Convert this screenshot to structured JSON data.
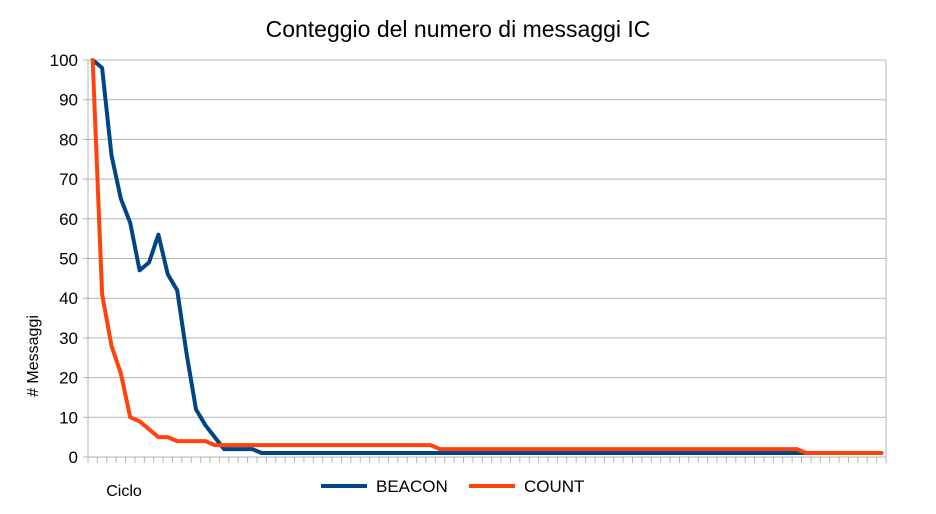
{
  "chart_data": {
    "type": "line",
    "title": "Conteggio del numero di messaggi IC",
    "xlabel": "Ciclo",
    "ylabel": "# Messaggi",
    "ylim": [
      0,
      100
    ],
    "yticks": [
      0,
      10,
      20,
      30,
      40,
      50,
      60,
      70,
      80,
      90,
      100
    ],
    "grid": true,
    "legend_position": "bottom",
    "x": [
      1,
      2,
      3,
      4,
      5,
      6,
      7,
      8,
      9,
      10,
      11,
      12,
      13,
      14,
      15,
      16,
      17,
      18,
      19,
      20,
      21,
      22,
      23,
      24,
      25,
      26,
      27,
      28,
      29,
      30,
      31,
      32,
      33,
      34,
      35,
      36,
      37,
      38,
      39,
      40,
      41,
      42,
      43,
      44,
      45,
      46,
      47,
      48,
      49,
      50,
      51,
      52,
      53,
      54,
      55,
      56,
      57,
      58,
      59,
      60,
      61,
      62,
      63,
      64,
      65,
      66,
      67,
      68,
      69,
      70,
      71,
      72,
      73,
      74,
      75,
      76,
      77,
      78,
      79,
      80,
      81,
      82,
      83,
      84,
      85
    ],
    "series": [
      {
        "name": "BEACON",
        "color": "#004586",
        "values": [
          100,
          98,
          76,
          65,
          59,
          47,
          49,
          56,
          46,
          42,
          26,
          12,
          8,
          5,
          2,
          2,
          2,
          2,
          1,
          1,
          1,
          1,
          1,
          1,
          1,
          1,
          1,
          1,
          1,
          1,
          1,
          1,
          1,
          1,
          1,
          1,
          1,
          1,
          1,
          1,
          1,
          1,
          1,
          1,
          1,
          1,
          1,
          1,
          1,
          1,
          1,
          1,
          1,
          1,
          1,
          1,
          1,
          1,
          1,
          1,
          1,
          1,
          1,
          1,
          1,
          1,
          1,
          1,
          1,
          1,
          1,
          1,
          1,
          1,
          1,
          1,
          1,
          1,
          1,
          1,
          1,
          1,
          1,
          1,
          1
        ]
      },
      {
        "name": "COUNT",
        "color": "#ff420e",
        "values": [
          100,
          41,
          28,
          21,
          10,
          9,
          7,
          5,
          5,
          4,
          4,
          4,
          4,
          3,
          3,
          3,
          3,
          3,
          3,
          3,
          3,
          3,
          3,
          3,
          3,
          3,
          3,
          3,
          3,
          3,
          3,
          3,
          3,
          3,
          3,
          3,
          3,
          2,
          2,
          2,
          2,
          2,
          2,
          2,
          2,
          2,
          2,
          2,
          2,
          2,
          2,
          2,
          2,
          2,
          2,
          2,
          2,
          2,
          2,
          2,
          2,
          2,
          2,
          2,
          2,
          2,
          2,
          2,
          2,
          2,
          2,
          2,
          2,
          2,
          2,
          2,
          1,
          1,
          1,
          1,
          1,
          1,
          1,
          1,
          1
        ]
      }
    ]
  }
}
